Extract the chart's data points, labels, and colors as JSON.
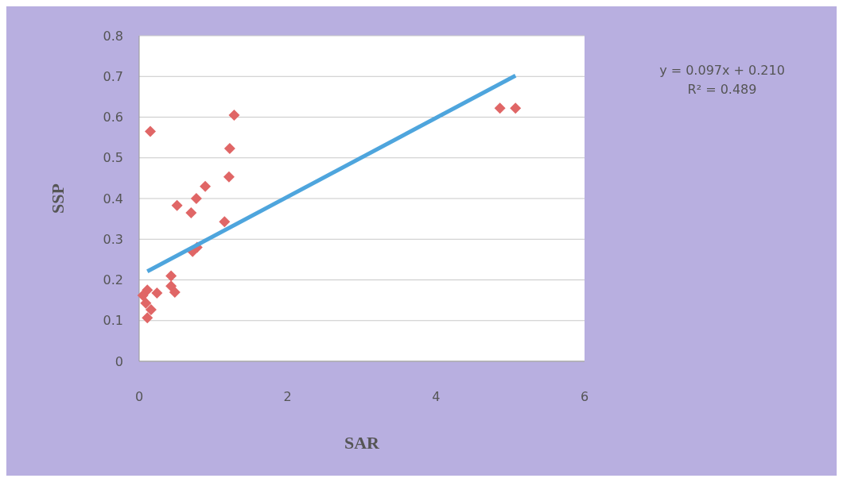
{
  "chart_data": {
    "type": "scatter",
    "xlabel": "SAR",
    "ylabel": "SSP",
    "xlim": [
      0,
      6
    ],
    "xticks": [
      0,
      2,
      4,
      6
    ],
    "ylim": [
      0,
      0.8
    ],
    "yticks": [
      0,
      0.1,
      0.2,
      0.3,
      0.4,
      0.5,
      0.6,
      0.7,
      0.8
    ],
    "grid": "y",
    "annotations": [
      "y = 0.097x + 0.210",
      "R² = 0.489"
    ],
    "series": [
      {
        "marker": "diamond",
        "color": "#e06666",
        "x": [
          0.15,
          1.28,
          1.22,
          1.21,
          0.89,
          0.77,
          0.51,
          0.7,
          1.15,
          0.72,
          0.78,
          0.43,
          0.43,
          0.48,
          0.24,
          0.11,
          0.09,
          0.16,
          0.11,
          0.05,
          4.86,
          5.07
        ],
        "values": [
          0.565,
          0.605,
          0.523,
          0.453,
          0.43,
          0.4,
          0.383,
          0.365,
          0.343,
          0.27,
          0.28,
          0.21,
          0.185,
          0.17,
          0.168,
          0.175,
          0.143,
          0.127,
          0.107,
          0.162,
          0.622,
          0.622
        ]
      },
      {
        "type": "line",
        "color": "#4ea5dd",
        "x": [
          0.11,
          5.07
        ],
        "values": [
          0.221,
          0.702
        ]
      }
    ]
  }
}
